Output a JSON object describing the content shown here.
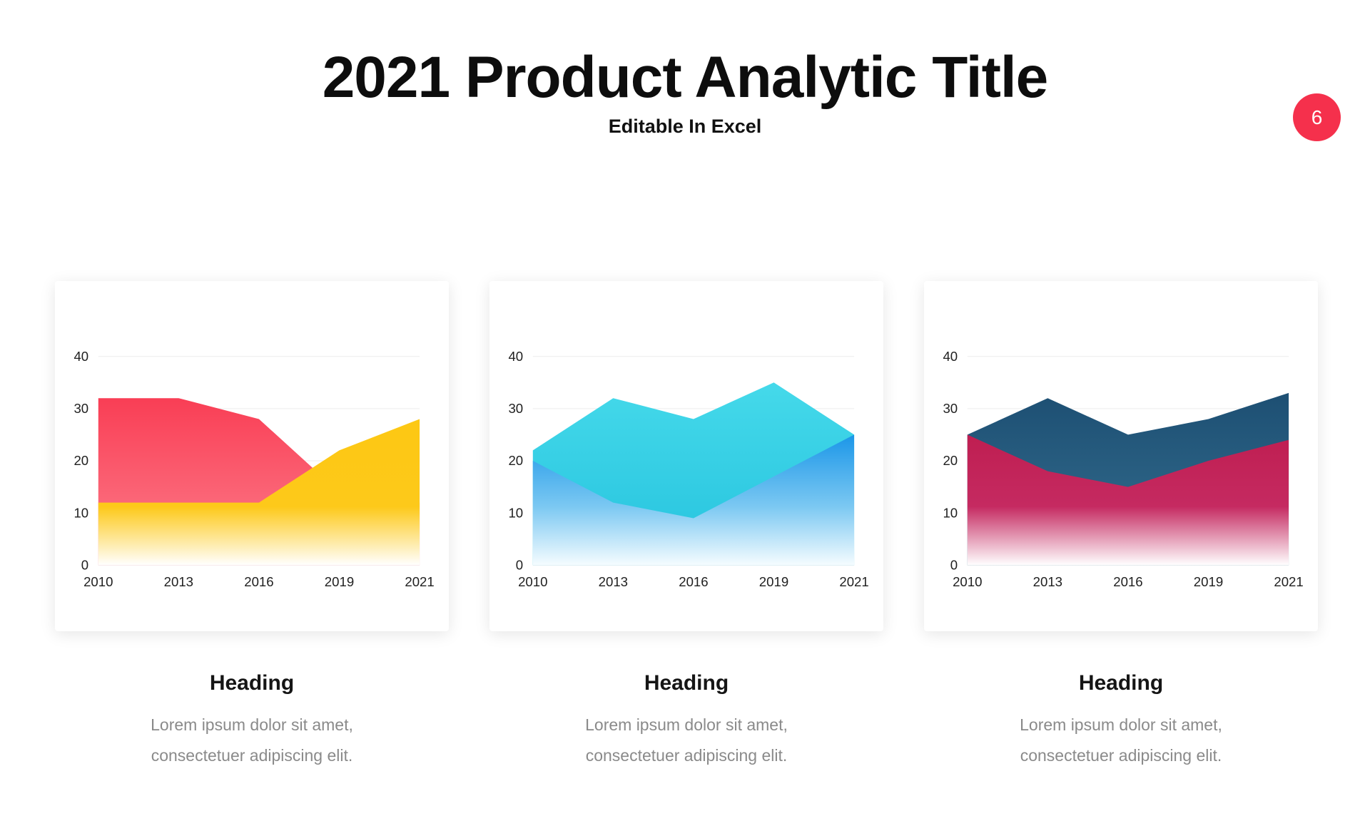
{
  "slide": {
    "title": "2021 Product Analytic Title",
    "subtitle": "Editable In Excel",
    "page_number": "6",
    "badge_color": "#f5304c"
  },
  "cards": [
    {
      "heading": "Heading",
      "body_line1": "Lorem ipsum dolor sit amet,",
      "body_line2": "consectetuer adipiscing elit."
    },
    {
      "heading": "Heading",
      "body_line1": "Lorem ipsum dolor sit amet,",
      "body_line2": "consectetuer adipiscing elit."
    },
    {
      "heading": "Heading",
      "body_line1": "Lorem ipsum dolor sit amet,",
      "body_line2": "consectetuer adipiscing elit."
    }
  ],
  "chart_data": [
    {
      "type": "area",
      "title": "",
      "categories": [
        "2010",
        "2013",
        "2016",
        "2019",
        "2021"
      ],
      "series": [
        {
          "name": "red-area",
          "values": [
            32,
            32,
            28,
            14,
            12
          ],
          "stops": [
            {
              "offset": "0%",
              "color": "#f93e55",
              "opacity": 1
            },
            {
              "offset": "100%",
              "color": "#fc7f8d",
              "opacity": 1
            }
          ]
        },
        {
          "name": "yellow-area",
          "values": [
            12,
            12,
            12,
            22,
            28
          ],
          "stops": [
            {
              "offset": "0%",
              "color": "#fdc813",
              "opacity": 1
            },
            {
              "offset": "60%",
              "color": "#fdc91a",
              "opacity": 1
            },
            {
              "offset": "100%",
              "color": "#ffffff",
              "opacity": 1
            }
          ]
        }
      ],
      "xlabel": "",
      "ylabel": "",
      "ylim": [
        0,
        40
      ],
      "yticks": [
        0,
        10,
        20,
        30,
        40
      ],
      "grid": true,
      "legend": "none"
    },
    {
      "type": "area",
      "title": "",
      "categories": [
        "2010",
        "2013",
        "2016",
        "2019",
        "2021"
      ],
      "series": [
        {
          "name": "cyan-area",
          "values": [
            22,
            32,
            28,
            35,
            25
          ],
          "stops": [
            {
              "offset": "0%",
              "color": "#45d9ea",
              "opacity": 1
            },
            {
              "offset": "100%",
              "color": "#25c3de",
              "opacity": 1
            }
          ]
        },
        {
          "name": "blue-area",
          "values": [
            20,
            12,
            9,
            17,
            25
          ],
          "stops": [
            {
              "offset": "0%",
              "color": "#1b96e8",
              "opacity": 1
            },
            {
              "offset": "55%",
              "color": "#7bc8f2",
              "opacity": 1
            },
            {
              "offset": "100%",
              "color": "#f5fcff",
              "opacity": 1
            }
          ]
        }
      ],
      "xlabel": "",
      "ylabel": "",
      "ylim": [
        0,
        40
      ],
      "yticks": [
        0,
        10,
        20,
        30,
        40
      ],
      "grid": true,
      "legend": "none"
    },
    {
      "type": "area",
      "title": "",
      "categories": [
        "2010",
        "2013",
        "2016",
        "2019",
        "2021"
      ],
      "series": [
        {
          "name": "navy-area",
          "values": [
            25,
            32,
            25,
            28,
            33
          ],
          "stops": [
            {
              "offset": "0%",
              "color": "#1d4f73",
              "opacity": 1
            },
            {
              "offset": "100%",
              "color": "#356f90",
              "opacity": 1
            }
          ]
        },
        {
          "name": "crimson-area",
          "values": [
            25,
            18,
            15,
            20,
            24
          ],
          "stops": [
            {
              "offset": "0%",
              "color": "#bf1e51",
              "opacity": 1
            },
            {
              "offset": "55%",
              "color": "#c52a61",
              "opacity": 1
            },
            {
              "offset": "100%",
              "color": "#ffffff",
              "opacity": 1
            }
          ]
        }
      ],
      "xlabel": "",
      "ylabel": "",
      "ylim": [
        0,
        40
      ],
      "yticks": [
        0,
        10,
        20,
        30,
        40
      ],
      "grid": true,
      "legend": "none"
    }
  ]
}
